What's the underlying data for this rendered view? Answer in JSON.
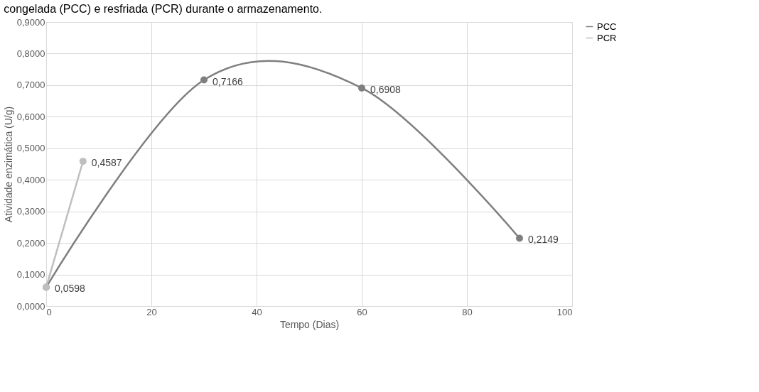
{
  "chart_data": {
    "type": "line",
    "title": "congelada (PCC) e resfriada (PCR) durante o armazenamento.",
    "xlabel": "Tempo (Dias)",
    "ylabel": "Atividade enzimática (U/g)",
    "xlim": [
      0,
      100
    ],
    "xticks": [
      0,
      20,
      40,
      60,
      80,
      100
    ],
    "ylim": [
      0,
      0.9
    ],
    "yticks": [
      {
        "value": 0,
        "label": "0,0000"
      },
      {
        "value": 0.1,
        "label": "0,1000"
      },
      {
        "value": 0.2,
        "label": "0,2000"
      },
      {
        "value": 0.3,
        "label": "0,3000"
      },
      {
        "value": 0.4,
        "label": "0,4000"
      },
      {
        "value": 0.5,
        "label": "0,5000"
      },
      {
        "value": 0.6,
        "label": "0,6000"
      },
      {
        "value": 0.7,
        "label": "0,7000"
      },
      {
        "value": 0.8,
        "label": "0,8000"
      },
      {
        "value": 0.9,
        "label": "0,9000"
      }
    ],
    "grid": true,
    "legend": "right",
    "marker": "circle",
    "series": [
      {
        "name": "PCC",
        "color": "#7f7f7f",
        "x": [
          0,
          30,
          60,
          90
        ],
        "values": [
          0.0598,
          0.7166,
          0.6908,
          0.2149
        ],
        "value_labels": [
          "0,0598",
          "0,7166",
          "0,6908",
          "0,2149"
        ]
      },
      {
        "name": "PCR",
        "color": "#bfbfbf",
        "x": [
          0,
          7
        ],
        "values": [
          0.0598,
          0.4587
        ],
        "value_labels": [
          null,
          "0,4587"
        ]
      }
    ]
  }
}
